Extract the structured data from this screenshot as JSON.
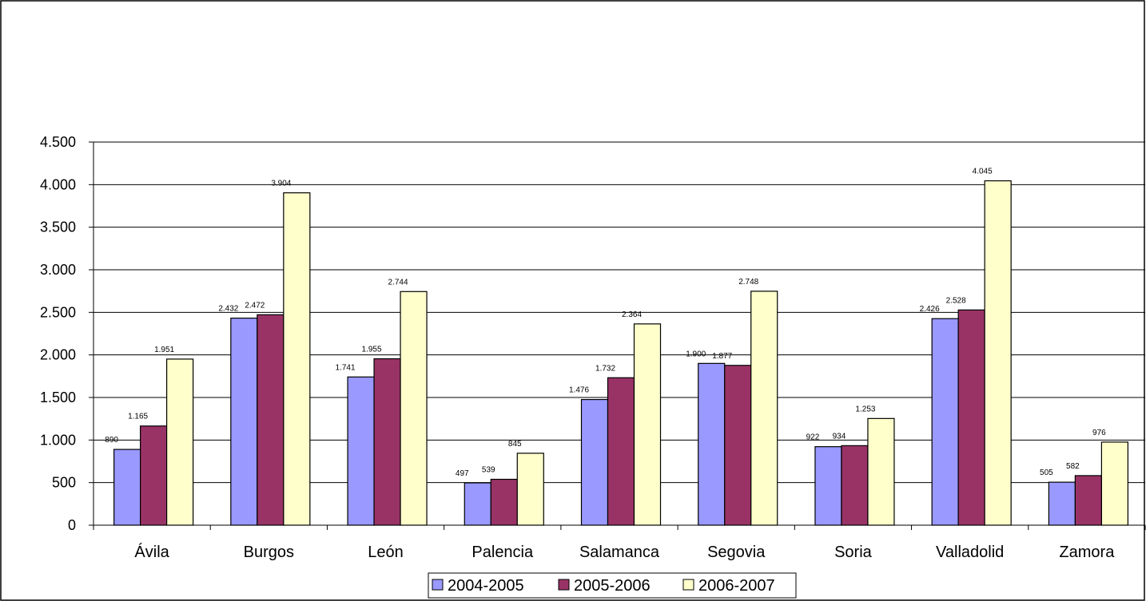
{
  "chart_data": {
    "type": "bar",
    "title": "",
    "xlabel": "",
    "ylabel": "",
    "categories": [
      "Ávila",
      "Burgos",
      "León",
      "Palencia",
      "Salamanca",
      "Segovia",
      "Soria",
      "Valladolid",
      "Zamora"
    ],
    "series": [
      {
        "name": "2004-2005",
        "color": "#9999ff",
        "values": [
          890,
          2432,
          1741,
          497,
          1476,
          1900,
          922,
          2426,
          505
        ],
        "labels": [
          "890",
          "2.432",
          "1.741",
          "497",
          "1.476",
          "1.900",
          "922",
          "2.426",
          "505"
        ]
      },
      {
        "name": "2005-2006",
        "color": "#993366",
        "values": [
          1165,
          2472,
          1955,
          539,
          1732,
          1877,
          934,
          2528,
          582
        ],
        "labels": [
          "1.165",
          "2.472",
          "1.955",
          "539",
          "1.732",
          "1.877",
          "934",
          "2.528",
          "582"
        ]
      },
      {
        "name": "2006-2007",
        "color": "#ffffcc",
        "values": [
          1951,
          3904,
          2744,
          845,
          2364,
          2748,
          1253,
          4045,
          976
        ],
        "labels": [
          "1.951",
          "3.904",
          "2.744",
          "845",
          "2.364",
          "2.748",
          "1.253",
          "4.045",
          "976"
        ]
      }
    ],
    "ylim": [
      0,
      4500
    ],
    "yticks": [
      0,
      500,
      1000,
      1500,
      2000,
      2500,
      3000,
      3500,
      4000,
      4500
    ],
    "ytick_labels": [
      "0",
      "500",
      "1.000",
      "1.500",
      "2.000",
      "2.500",
      "3.000",
      "3.500",
      "4.000",
      "4.500"
    ],
    "grid": true,
    "legend_position": "bottom"
  }
}
